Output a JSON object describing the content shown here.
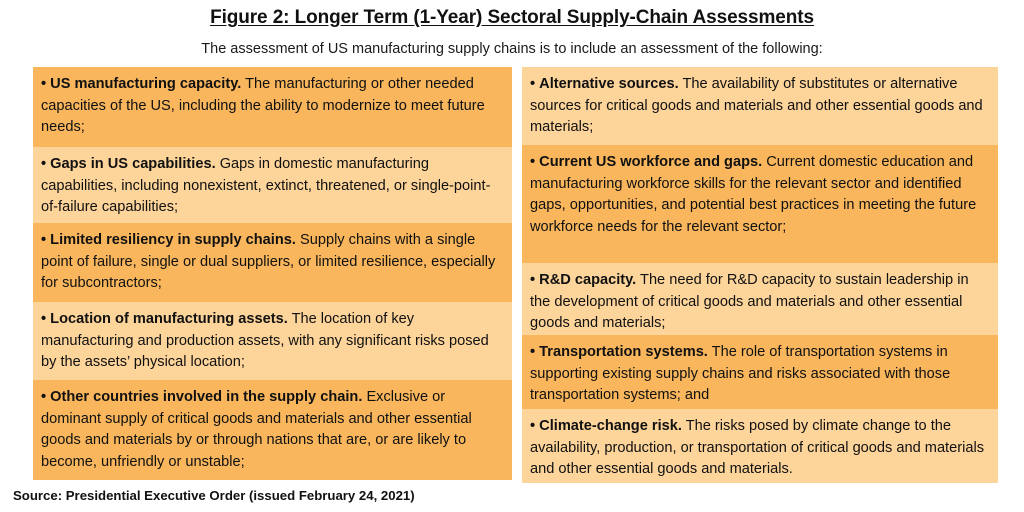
{
  "title": "Figure 2: Longer Term (1-Year) Sectoral Supply-Chain Assessments",
  "subtitle": "The assessment of US manufacturing supply chains is to include an assessment of the following:",
  "bullet": "•",
  "left_items": [
    {
      "heading": "US manufacturing capacity.",
      "text": "The manufacturing or other needed capacities of the US, including the ability to modernize to meet future needs;"
    },
    {
      "heading": "Gaps in US capabilities.",
      "text": "Gaps in domestic manufacturing capabilities, including nonexistent, extinct, threatened, or single-point-of-failure capabilities;"
    },
    {
      "heading": "Limited resiliency in supply chains.",
      "text": "Supply chains with a single point of failure, single or dual suppliers, or limited resilience, especially for subcontractors;"
    },
    {
      "heading": "Location of manufacturing assets.",
      "text": "The location of key manufacturing and production assets, with any significant risks posed by the assets’ physical location;"
    },
    {
      "heading": "Other countries involved in the supply chain.",
      "text": "Exclusive or dominant supply of critical goods and materials and other essential goods and materials by or through nations that are, or are likely to become, unfriendly or unstable;"
    }
  ],
  "right_items": [
    {
      "heading": "Alternative sources.",
      "text": "The availability of substitutes or alternative sources for critical goods and materials and other essential goods and materials;"
    },
    {
      "heading": "Current US workforce and gaps.",
      "text": "Current domestic education and manufacturing workforce skills for the relevant sector and identified gaps, opportunities, and potential best practices in meeting the future workforce needs for the relevant sector;"
    },
    {
      "heading": "R&D capacity.",
      "text": "The need for R&D capacity to sustain leadership in the development of critical goods and materials and other essential goods and materials;"
    },
    {
      "heading": "Transportation systems.",
      "text": "The role of transportation systems in supporting existing supply chains and risks associated with those transportation systems; and"
    },
    {
      "heading": "Climate-change risk.",
      "text": "The risks posed by climate change to the availability, production, or transportation of critical goods and materials and other essential goods and materials."
    }
  ],
  "source": "Source: Presidential Executive Order (issued February 24, 2021)",
  "colors": {
    "dark_fill": "#f9b65c",
    "light_fill": "#fdd49a"
  }
}
